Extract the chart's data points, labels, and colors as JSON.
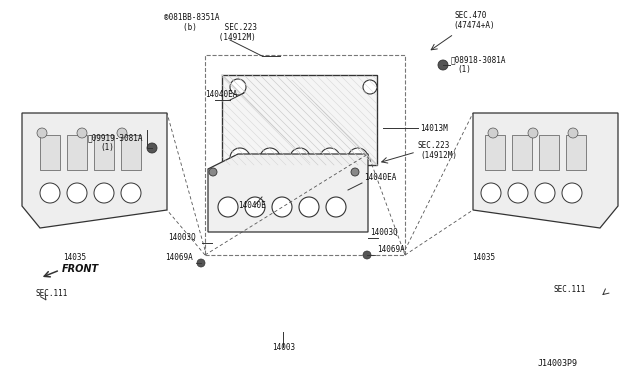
{
  "title": "",
  "background_color": "#ffffff",
  "fig_width": 6.4,
  "fig_height": 3.72,
  "dpi": 100,
  "diagram_id": "J14003P9",
  "labels": {
    "bolt_top_left": "®081BB-8351A",
    "bolt_top_left_2": "(b)      SEC.223",
    "bolt_top_left_3": "      (14912M)",
    "sec470": "SEC.470",
    "sec470_2": "(47474+A)",
    "top_right_bolt": "Ⓝ08918-3081A",
    "top_right_bolt_2": "(1)",
    "left_bolt": "Ⓝ09919-3081A",
    "left_bolt_2": "(1)",
    "14040EA_top": "14040EA",
    "14013M": "14013M",
    "sec223_right": "SEC.223",
    "sec223_right_2": "(14912M)",
    "14040EA_bot": "14040EA",
    "14040E": "14040E",
    "14003Q_left": "14003Q",
    "14003Q_right": "14003Q",
    "14069A_left": "14069A",
    "14069A_right": "14069A",
    "14035_left": "14035",
    "14035_right": "14035",
    "SEC111_left": "SEC.111",
    "SEC111_right": "SEC.111",
    "14003": "14003",
    "FRONT": "FRONT",
    "diagram_code": "J14003P9"
  },
  "colors": {
    "line": "#333333",
    "text": "#111111",
    "dashed": "#555555",
    "box": "#888888",
    "part_fill": "#e8e8e8",
    "hatching": "#aaaaaa"
  }
}
